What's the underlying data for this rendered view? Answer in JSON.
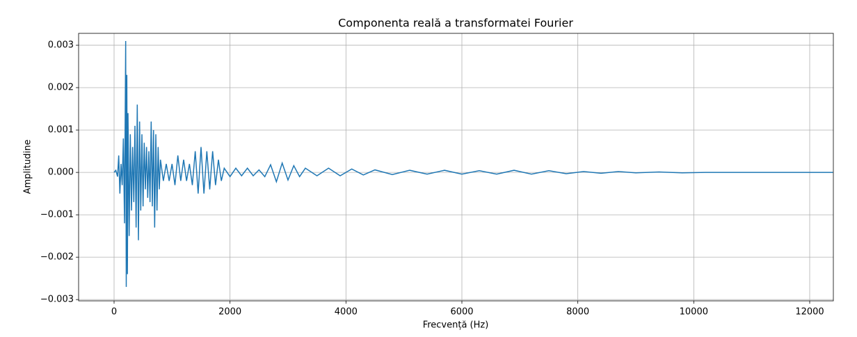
{
  "chart_data": {
    "type": "line",
    "title": "Componenta reală a transformatei Fourier",
    "x_label": "Frecvență (Hz)",
    "y_label": "Amplitudine",
    "x": [
      0,
      30,
      60,
      80,
      100,
      120,
      140,
      160,
      180,
      200,
      210,
      220,
      230,
      240,
      260,
      280,
      300,
      320,
      340,
      360,
      380,
      400,
      420,
      440,
      460,
      480,
      500,
      520,
      540,
      560,
      580,
      600,
      620,
      640,
      660,
      680,
      700,
      720,
      740,
      760,
      780,
      800,
      850,
      900,
      950,
      1000,
      1050,
      1100,
      1150,
      1200,
      1250,
      1300,
      1350,
      1400,
      1450,
      1500,
      1550,
      1600,
      1650,
      1700,
      1750,
      1800,
      1850,
      1900,
      2000,
      2100,
      2200,
      2300,
      2400,
      2500,
      2600,
      2700,
      2800,
      2900,
      3000,
      3100,
      3200,
      3300,
      3500,
      3700,
      3900,
      4100,
      4300,
      4500,
      4800,
      5100,
      5400,
      5700,
      6000,
      6300,
      6600,
      6900,
      7200,
      7500,
      7800,
      8100,
      8400,
      8700,
      9000,
      9400,
      9800,
      10200,
      10800,
      11400,
      12000,
      12400
    ],
    "values": [
      0,
      5e-05,
      -0.0001,
      0.0004,
      -0.0005,
      0.0002,
      -0.0003,
      0.0008,
      -0.0012,
      0.0031,
      -0.0027,
      0.0023,
      -0.0024,
      0.0014,
      -0.0015,
      0.0009,
      -0.0009,
      0.0006,
      -0.0007,
      0.0011,
      -0.0013,
      0.0016,
      -0.0016,
      0.0012,
      -0.0009,
      0.0009,
      -0.0008,
      0.0007,
      -0.0004,
      0.0006,
      -0.0006,
      0.0005,
      -0.0007,
      0.0012,
      -0.0008,
      0.001,
      -0.0013,
      0.0009,
      -0.0009,
      0.0006,
      -0.0004,
      0.0003,
      -0.0002,
      0.0002,
      -0.0002,
      0.0002,
      -0.0003,
      0.0004,
      -0.0002,
      0.0003,
      -0.0002,
      0.0002,
      -0.0003,
      0.0005,
      -0.0005,
      0.0006,
      -0.0005,
      0.0005,
      -0.0004,
      0.0005,
      -0.0003,
      0.0003,
      -0.0002,
      0.0001,
      -0.0001,
      0.0001,
      -8e-05,
      0.0001,
      -8e-05,
      6e-05,
      -0.0001,
      0.00018,
      -0.00022,
      0.00022,
      -0.00018,
      0.00016,
      -0.0001,
      0.0001,
      -8e-05,
      0.0001,
      -8e-05,
      8e-05,
      -6e-05,
      6e-05,
      -5e-05,
      5e-05,
      -4e-05,
      5e-05,
      -4e-05,
      4e-05,
      -4e-05,
      5e-05,
      -4e-05,
      4e-05,
      -3e-05,
      2e-05,
      -2e-05,
      2e-05,
      -1e-05,
      1e-05,
      -1e-05,
      0,
      0,
      0,
      0,
      0
    ],
    "color": "#1f77b4",
    "xlim": [
      -612,
      12408
    ],
    "ylim": [
      -0.00303,
      0.00328
    ],
    "xticks": [
      0,
      2000,
      4000,
      6000,
      8000,
      10000,
      12000
    ],
    "yticks": [
      {
        "value": -0.003,
        "label": "−0.003"
      },
      {
        "value": -0.002,
        "label": "−0.002"
      },
      {
        "value": -0.001,
        "label": "−0.001"
      },
      {
        "value": 0,
        "label": "0.000"
      },
      {
        "value": 0.001,
        "label": "0.001"
      },
      {
        "value": 0.002,
        "label": "0.002"
      },
      {
        "value": 0.003,
        "label": "0.003"
      }
    ],
    "grid": true
  }
}
